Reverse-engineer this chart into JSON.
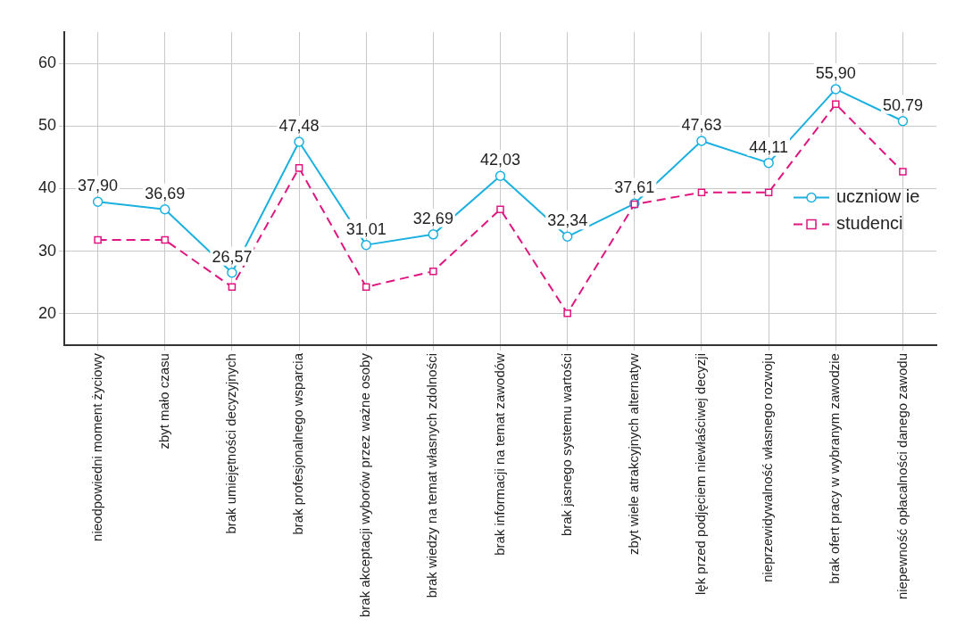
{
  "chart_data": {
    "type": "line",
    "categories": [
      "nieodpowiedni moment życiowy",
      "zbyt mało czasu",
      "brak umiejętności decyzyjnych",
      "brak profesjonalnego wsparcia",
      "brak akceptacji wyborów przez ważne osoby",
      "brak wiedzy na temat własnych zdolności",
      "brak informacji na temat zawodów",
      "brak jasnego systemu wartości",
      "zbyt wiele atrakcyjnych alternatyw",
      "lęk przed podjęciem niewłaściwej decyzji",
      "nieprzewidywalność własnego rozwoju",
      "brak ofert pracy w wybranym zawodzie",
      "niepewność opłacalności danego zawodu"
    ],
    "series": [
      {
        "name": "uczniow ie",
        "color": "#1ab0e0",
        "marker": "circle",
        "line_style": "solid",
        "data_labels": true,
        "value_labels": [
          "37,90",
          "36,69",
          "26,57",
          "47,48",
          "31,01",
          "32,69",
          "42,03",
          "32,34",
          "37,61",
          "47,63",
          "44,11",
          "55,90",
          "50,79"
        ],
        "values": [
          37.9,
          36.69,
          26.57,
          47.48,
          31.01,
          32.69,
          42.03,
          32.34,
          37.61,
          47.63,
          44.11,
          55.9,
          50.79
        ]
      },
      {
        "name": "studenci",
        "color": "#e0157f",
        "marker": "square",
        "line_style": "dashed",
        "values": [
          31.8,
          31.8,
          24.3,
          43.3,
          24.3,
          26.8,
          36.7,
          20.1,
          37.5,
          39.4,
          39.4,
          53.5,
          42.7
        ]
      }
    ],
    "ylim": [
      15,
      65
    ],
    "yticks": [
      20,
      30,
      40,
      50,
      60
    ],
    "grid": true,
    "legend": "right"
  }
}
